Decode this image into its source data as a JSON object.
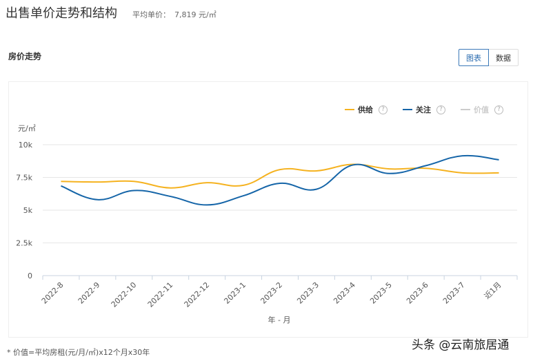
{
  "header": {
    "title": "出售单价走势和结构",
    "avg_label": "平均单价：",
    "avg_value": "7,819 元/㎡"
  },
  "section": {
    "title": "房价走势"
  },
  "view_toggle": {
    "chart_label": "图表",
    "data_label": "数据",
    "active": "chart"
  },
  "legend": {
    "items": [
      {
        "label": "供给",
        "color": "#f5b21f",
        "help_icon": "question-circle-icon",
        "enabled": true
      },
      {
        "label": "关注",
        "color": "#1565a8",
        "help_icon": "question-circle-icon",
        "enabled": true
      },
      {
        "label": "价值",
        "color": "#cccccc",
        "help_icon": "question-circle-icon",
        "enabled": false
      }
    ]
  },
  "footnote": "* 价值=平均房租(元/月/㎡)x12个月x30年",
  "watermark": "头条 @云南旅居通",
  "chart_data": {
    "type": "line",
    "title": "房价走势",
    "xlabel": "年 - 月",
    "ylabel": "元/㎡",
    "ylim": [
      0,
      10000
    ],
    "yticks": [
      "0",
      "2.5k",
      "5k",
      "7.5k",
      "10k"
    ],
    "grid": true,
    "legend_position": "top-right",
    "categories": [
      "2022-8",
      "2022-9",
      "2022-10",
      "2022-11",
      "2022-12",
      "2023-1",
      "2023-2",
      "2023-3",
      "2023-4",
      "2023-5",
      "2023-6",
      "2023-7",
      "近1月"
    ],
    "series": [
      {
        "name": "供给",
        "color": "#f5b21f",
        "values": [
          7200,
          7150,
          7200,
          6700,
          7100,
          6900,
          8100,
          8000,
          8500,
          8150,
          8200,
          7850,
          7850
        ]
      },
      {
        "name": "关注",
        "color": "#1565a8",
        "values": [
          6850,
          5800,
          6500,
          6050,
          5400,
          6100,
          7050,
          6600,
          8450,
          7800,
          8400,
          9150,
          8850
        ]
      },
      {
        "name": "价值",
        "color": "#cccccc",
        "values": [],
        "hidden": true
      }
    ]
  }
}
